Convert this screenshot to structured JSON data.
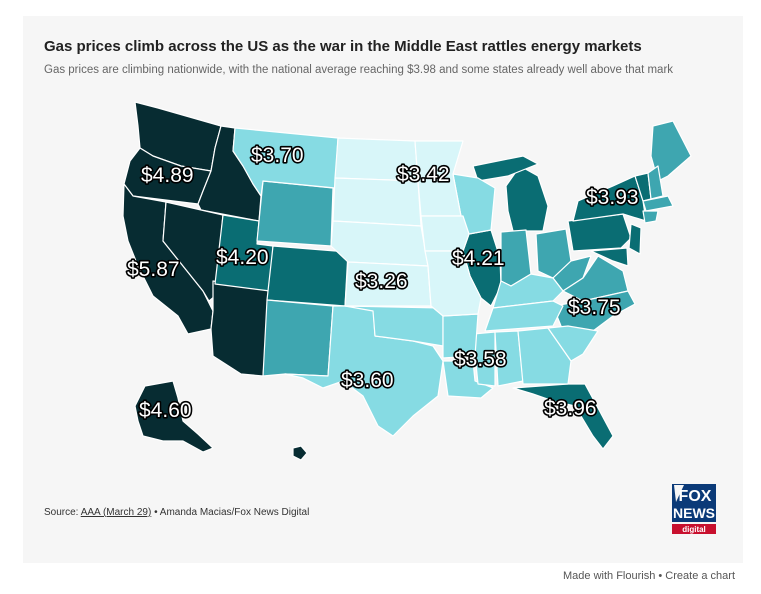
{
  "title": "Gas prices climb across the US as the war in the Middle East rattles energy markets",
  "subtitle": "Gas prices are climbing nationwide, with the national average reaching $3.98 and some states already well above that mark",
  "labels": [
    {
      "state": "Oregon",
      "text": "$4.89"
    },
    {
      "state": "Montana",
      "text": "$3.70"
    },
    {
      "state": "Minnesota",
      "text": "$3.42"
    },
    {
      "state": "New York",
      "text": "$3.93"
    },
    {
      "state": "California",
      "text": "$5.87"
    },
    {
      "state": "Utah",
      "text": "$4.20"
    },
    {
      "state": "Kansas",
      "text": "$3.26"
    },
    {
      "state": "Illinois",
      "text": "$4.21"
    },
    {
      "state": "North Carolina",
      "text": "$3.75"
    },
    {
      "state": "Mississippi",
      "text": "$3.58"
    },
    {
      "state": "Texas",
      "text": "$3.60"
    },
    {
      "state": "Florida",
      "text": "$3.96"
    },
    {
      "state": "Alaska",
      "text": "$4.60"
    }
  ],
  "colors": {
    "darkest": "#072c32",
    "dark": "#0a6d73",
    "medium": "#3ea6b0",
    "light": "#86dbe3",
    "lightest": "#d8f6f9"
  },
  "source": {
    "prefix": "Source: ",
    "link": "AAA (March 29)",
    "suffix": " • Amanda Macias/Fox News Digital"
  },
  "logo": {
    "line1": "FOX",
    "line2": "NEWS",
    "line3": "digital"
  },
  "footer": {
    "made_with": "Made with Flourish",
    "separator": " • ",
    "create": "Create a chart"
  }
}
